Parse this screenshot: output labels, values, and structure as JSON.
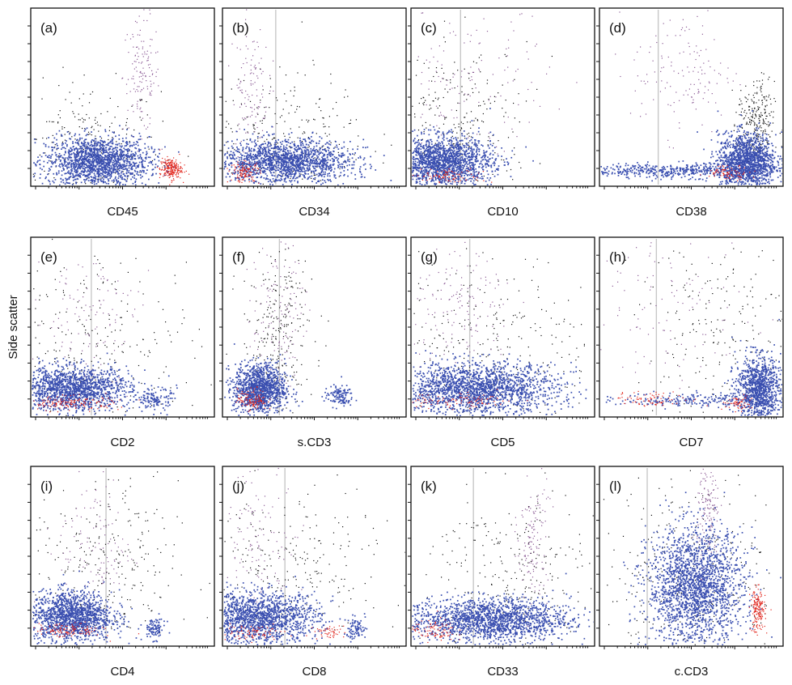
{
  "figure": {
    "y_axis_label": "Side scatter",
    "colors": {
      "blast": "#3a4fb0",
      "lymph": "#e2231a",
      "granulocyte": "#8a5a94",
      "other": "#111111",
      "gate": "#c8c8c8"
    }
  },
  "chart_data": [
    {
      "type": "scatter",
      "label": "(a)",
      "xlabel": "CD45",
      "gate": false,
      "clusters": [
        {
          "role": "blast",
          "cx": 0.36,
          "cy": 0.14,
          "sx": 0.14,
          "sy": 0.07,
          "n": 1600
        },
        {
          "role": "lymph",
          "cx": 0.76,
          "cy": 0.1,
          "sx": 0.03,
          "sy": 0.03,
          "n": 220
        },
        {
          "role": "granulocyte",
          "cx": 0.6,
          "cy": 0.62,
          "sx": 0.05,
          "sy": 0.16,
          "n": 140
        },
        {
          "role": "other",
          "cx": 0.3,
          "cy": 0.22,
          "sx": 0.2,
          "sy": 0.18,
          "n": 260
        }
      ]
    },
    {
      "type": "scatter",
      "label": "(b)",
      "xlabel": "CD34",
      "gate": true,
      "gate_x": 0.29,
      "clusters": [
        {
          "role": "blast",
          "cx": 0.34,
          "cy": 0.14,
          "sx": 0.18,
          "sy": 0.06,
          "n": 1600
        },
        {
          "role": "lymph",
          "cx": 0.12,
          "cy": 0.08,
          "sx": 0.04,
          "sy": 0.03,
          "n": 120
        },
        {
          "role": "granulocyte",
          "cx": 0.15,
          "cy": 0.55,
          "sx": 0.05,
          "sy": 0.18,
          "n": 120
        },
        {
          "role": "other",
          "cx": 0.35,
          "cy": 0.28,
          "sx": 0.22,
          "sy": 0.18,
          "n": 260
        }
      ]
    },
    {
      "type": "scatter",
      "label": "(c)",
      "xlabel": "CD10",
      "gate": true,
      "gate_x": 0.27,
      "clusters": [
        {
          "role": "blast",
          "cx": 0.16,
          "cy": 0.14,
          "sx": 0.14,
          "sy": 0.07,
          "n": 1700
        },
        {
          "role": "lymph",
          "cx": 0.2,
          "cy": 0.06,
          "sx": 0.1,
          "sy": 0.02,
          "n": 90
        },
        {
          "role": "granulocyte",
          "cx": 0.3,
          "cy": 0.6,
          "sx": 0.22,
          "sy": 0.2,
          "n": 140
        },
        {
          "role": "other",
          "cx": 0.22,
          "cy": 0.35,
          "sx": 0.22,
          "sy": 0.22,
          "n": 300
        }
      ]
    },
    {
      "type": "scatter",
      "label": "(d)",
      "xlabel": "CD38",
      "gate": true,
      "gate_x": 0.32,
      "clusters": [
        {
          "role": "blast",
          "cx": 0.8,
          "cy": 0.14,
          "sx": 0.08,
          "sy": 0.08,
          "n": 1400
        },
        {
          "role": "blast",
          "cx": 0.4,
          "cy": 0.09,
          "sx": 0.28,
          "sy": 0.02,
          "n": 500
        },
        {
          "role": "lymph",
          "cx": 0.7,
          "cy": 0.08,
          "sx": 0.06,
          "sy": 0.02,
          "n": 80
        },
        {
          "role": "granulocyte",
          "cx": 0.45,
          "cy": 0.65,
          "sx": 0.14,
          "sy": 0.18,
          "n": 140
        },
        {
          "role": "other",
          "cx": 0.85,
          "cy": 0.35,
          "sx": 0.05,
          "sy": 0.12,
          "n": 260
        }
      ]
    },
    {
      "type": "scatter",
      "label": "(e)",
      "xlabel": "CD2",
      "gate": true,
      "gate_x": 0.33,
      "clusters": [
        {
          "role": "blast",
          "cx": 0.22,
          "cy": 0.16,
          "sx": 0.16,
          "sy": 0.06,
          "n": 1500
        },
        {
          "role": "blast",
          "cx": 0.68,
          "cy": 0.1,
          "sx": 0.04,
          "sy": 0.03,
          "n": 120
        },
        {
          "role": "lymph",
          "cx": 0.2,
          "cy": 0.08,
          "sx": 0.14,
          "sy": 0.02,
          "n": 150
        },
        {
          "role": "granulocyte",
          "cx": 0.3,
          "cy": 0.55,
          "sx": 0.14,
          "sy": 0.2,
          "n": 120
        },
        {
          "role": "other",
          "cx": 0.35,
          "cy": 0.4,
          "sx": 0.28,
          "sy": 0.25,
          "n": 260
        }
      ]
    },
    {
      "type": "scatter",
      "label": "(f)",
      "xlabel": "s.CD3",
      "gate": true,
      "gate_x": 0.31,
      "clusters": [
        {
          "role": "blast",
          "cx": 0.2,
          "cy": 0.16,
          "sx": 0.07,
          "sy": 0.07,
          "n": 1200
        },
        {
          "role": "blast",
          "cx": 0.63,
          "cy": 0.12,
          "sx": 0.04,
          "sy": 0.03,
          "n": 120
        },
        {
          "role": "lymph",
          "cx": 0.16,
          "cy": 0.1,
          "sx": 0.04,
          "sy": 0.03,
          "n": 120
        },
        {
          "role": "granulocyte",
          "cx": 0.3,
          "cy": 0.6,
          "sx": 0.07,
          "sy": 0.2,
          "n": 130
        },
        {
          "role": "other",
          "cx": 0.3,
          "cy": 0.45,
          "sx": 0.1,
          "sy": 0.25,
          "n": 260
        }
      ]
    },
    {
      "type": "scatter",
      "label": "(g)",
      "xlabel": "CD5",
      "gate": true,
      "gate_x": 0.32,
      "clusters": [
        {
          "role": "blast",
          "cx": 0.35,
          "cy": 0.16,
          "sx": 0.22,
          "sy": 0.07,
          "n": 1900
        },
        {
          "role": "lymph",
          "cx": 0.25,
          "cy": 0.09,
          "sx": 0.18,
          "sy": 0.02,
          "n": 100
        },
        {
          "role": "granulocyte",
          "cx": 0.28,
          "cy": 0.6,
          "sx": 0.14,
          "sy": 0.18,
          "n": 150
        },
        {
          "role": "other",
          "cx": 0.45,
          "cy": 0.4,
          "sx": 0.28,
          "sy": 0.25,
          "n": 280
        }
      ]
    },
    {
      "type": "scatter",
      "label": "(h)",
      "xlabel": "CD7",
      "gate": true,
      "gate_x": 0.31,
      "clusters": [
        {
          "role": "blast",
          "cx": 0.86,
          "cy": 0.16,
          "sx": 0.06,
          "sy": 0.09,
          "n": 1000
        },
        {
          "role": "blast",
          "cx": 0.55,
          "cy": 0.1,
          "sx": 0.22,
          "sy": 0.02,
          "n": 220
        },
        {
          "role": "lymph",
          "cx": 0.3,
          "cy": 0.1,
          "sx": 0.12,
          "sy": 0.02,
          "n": 80
        },
        {
          "role": "lymph",
          "cx": 0.75,
          "cy": 0.08,
          "sx": 0.04,
          "sy": 0.02,
          "n": 60
        },
        {
          "role": "granulocyte",
          "cx": 0.4,
          "cy": 0.6,
          "sx": 0.22,
          "sy": 0.22,
          "n": 110
        },
        {
          "role": "other",
          "cx": 0.7,
          "cy": 0.5,
          "sx": 0.25,
          "sy": 0.25,
          "n": 220
        }
      ]
    },
    {
      "type": "scatter",
      "label": "(i)",
      "xlabel": "CD4",
      "gate": true,
      "gate_x": 0.41,
      "clusters": [
        {
          "role": "blast",
          "cx": 0.22,
          "cy": 0.17,
          "sx": 0.11,
          "sy": 0.07,
          "n": 1400
        },
        {
          "role": "blast",
          "cx": 0.67,
          "cy": 0.1,
          "sx": 0.03,
          "sy": 0.03,
          "n": 90
        },
        {
          "role": "lymph",
          "cx": 0.2,
          "cy": 0.09,
          "sx": 0.09,
          "sy": 0.02,
          "n": 120
        },
        {
          "role": "granulocyte",
          "cx": 0.35,
          "cy": 0.55,
          "sx": 0.1,
          "sy": 0.2,
          "n": 120
        },
        {
          "role": "other",
          "cx": 0.4,
          "cy": 0.42,
          "sx": 0.2,
          "sy": 0.25,
          "n": 260
        }
      ]
    },
    {
      "type": "scatter",
      "label": "(j)",
      "xlabel": "CD8",
      "gate": true,
      "gate_x": 0.34,
      "clusters": [
        {
          "role": "blast",
          "cx": 0.2,
          "cy": 0.16,
          "sx": 0.16,
          "sy": 0.07,
          "n": 1500
        },
        {
          "role": "blast",
          "cx": 0.72,
          "cy": 0.1,
          "sx": 0.03,
          "sy": 0.03,
          "n": 80
        },
        {
          "role": "lymph",
          "cx": 0.58,
          "cy": 0.08,
          "sx": 0.04,
          "sy": 0.02,
          "n": 50
        },
        {
          "role": "lymph",
          "cx": 0.15,
          "cy": 0.08,
          "sx": 0.1,
          "sy": 0.02,
          "n": 80
        },
        {
          "role": "granulocyte",
          "cx": 0.2,
          "cy": 0.6,
          "sx": 0.1,
          "sy": 0.2,
          "n": 120
        },
        {
          "role": "other",
          "cx": 0.35,
          "cy": 0.4,
          "sx": 0.25,
          "sy": 0.25,
          "n": 260
        }
      ]
    },
    {
      "type": "scatter",
      "label": "(k)",
      "xlabel": "CD33",
      "gate": true,
      "gate_x": 0.34,
      "clusters": [
        {
          "role": "blast",
          "cx": 0.42,
          "cy": 0.15,
          "sx": 0.22,
          "sy": 0.06,
          "n": 1700
        },
        {
          "role": "lymph",
          "cx": 0.12,
          "cy": 0.09,
          "sx": 0.06,
          "sy": 0.03,
          "n": 90
        },
        {
          "role": "granulocyte",
          "cx": 0.66,
          "cy": 0.6,
          "sx": 0.04,
          "sy": 0.2,
          "n": 140
        },
        {
          "role": "other",
          "cx": 0.55,
          "cy": 0.4,
          "sx": 0.22,
          "sy": 0.25,
          "n": 260
        }
      ]
    },
    {
      "type": "scatter",
      "label": "(l)",
      "xlabel": "c.CD3",
      "gate": true,
      "gate_x": 0.26,
      "clusters": [
        {
          "role": "blast",
          "cx": 0.52,
          "cy": 0.33,
          "sx": 0.13,
          "sy": 0.16,
          "n": 2000
        },
        {
          "role": "lymph",
          "cx": 0.86,
          "cy": 0.2,
          "sx": 0.02,
          "sy": 0.06,
          "n": 180
        },
        {
          "role": "granulocyte",
          "cx": 0.59,
          "cy": 0.75,
          "sx": 0.03,
          "sy": 0.16,
          "n": 150
        },
        {
          "role": "other",
          "cx": 0.5,
          "cy": 0.4,
          "sx": 0.24,
          "sy": 0.3,
          "n": 300
        }
      ]
    }
  ]
}
